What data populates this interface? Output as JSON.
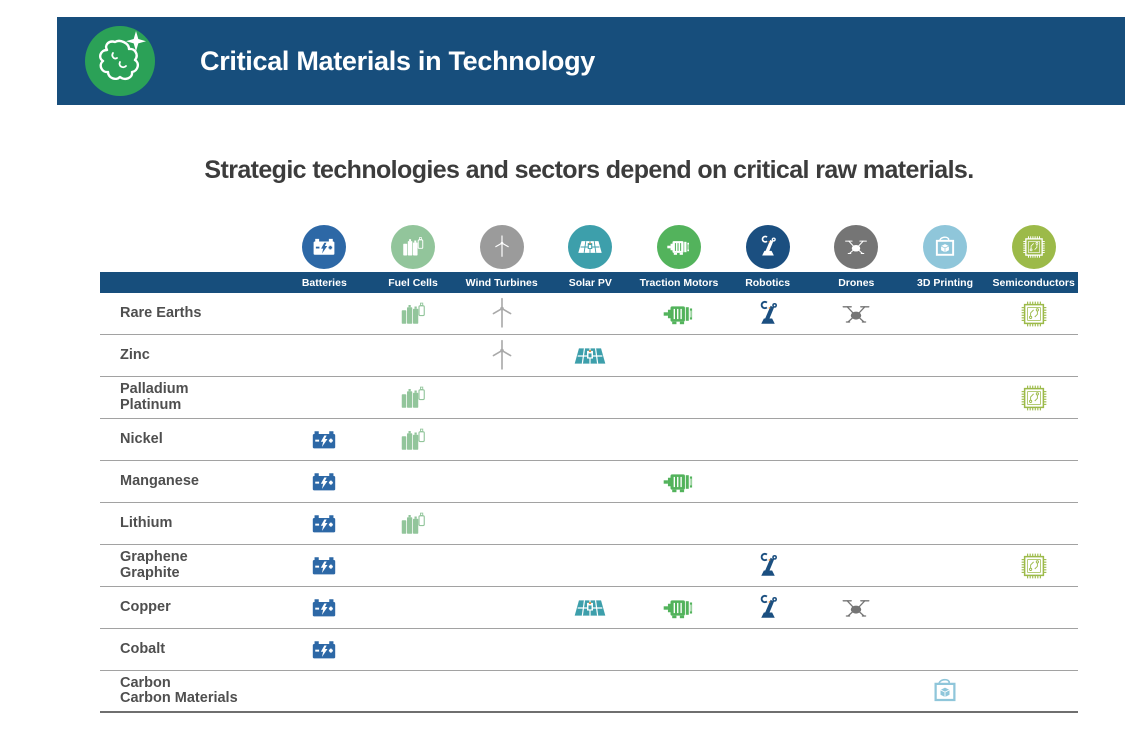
{
  "header": {
    "title": "Critical Materials in Technology",
    "logo_icon": "minerals-logo"
  },
  "subtitle": "Strategic technologies and sectors depend on critical raw materials.",
  "table": {
    "columns": [
      {
        "id": "batteries",
        "label": "Batteries",
        "color": "#2d68a6",
        "icon": "battery-icon"
      },
      {
        "id": "fuel-cells",
        "label": "Fuel Cells",
        "color": "#92c59b",
        "icon": "fuel-cell-icon"
      },
      {
        "id": "wind-turbines",
        "label": "Wind Turbines",
        "color": "#9b9b9b",
        "cell_color": "#a9a9a9",
        "icon": "wind-turbine-icon"
      },
      {
        "id": "solar-pv",
        "label": "Solar PV",
        "color": "#3d9fab",
        "icon": "solar-panel-icon"
      },
      {
        "id": "traction-motors",
        "label": "Traction Motors",
        "color": "#53b35c",
        "icon": "motor-icon"
      },
      {
        "id": "robotics",
        "label": "Robotics",
        "color": "#1b4f80",
        "icon": "robot-arm-icon"
      },
      {
        "id": "drones",
        "label": "Drones",
        "color": "#757575",
        "icon": "drone-icon"
      },
      {
        "id": "3d-printing",
        "label": "3D Printing",
        "color": "#8fc6da",
        "icon": "3d-printer-icon"
      },
      {
        "id": "semiconductors",
        "label": "Semiconductors",
        "color": "#9cba49",
        "icon": "chip-icon"
      }
    ],
    "rows": [
      {
        "id": "rare-earths",
        "label_lines": [
          "Rare Earths"
        ],
        "cells": [
          0,
          1,
          1,
          0,
          1,
          1,
          1,
          0,
          1
        ]
      },
      {
        "id": "zinc",
        "label_lines": [
          "Zinc"
        ],
        "cells": [
          0,
          0,
          1,
          1,
          0,
          0,
          0,
          0,
          0
        ]
      },
      {
        "id": "palladium",
        "label_lines": [
          "Palladium",
          "Platinum"
        ],
        "cells": [
          0,
          1,
          0,
          0,
          0,
          0,
          0,
          0,
          1
        ]
      },
      {
        "id": "nickel",
        "label_lines": [
          "Nickel"
        ],
        "cells": [
          1,
          1,
          0,
          0,
          0,
          0,
          0,
          0,
          0
        ]
      },
      {
        "id": "manganese",
        "label_lines": [
          "Manganese"
        ],
        "cells": [
          1,
          0,
          0,
          0,
          1,
          0,
          0,
          0,
          0
        ]
      },
      {
        "id": "lithium",
        "label_lines": [
          "Lithium"
        ],
        "cells": [
          1,
          1,
          0,
          0,
          0,
          0,
          0,
          0,
          0
        ]
      },
      {
        "id": "graphene",
        "label_lines": [
          "Graphene",
          "Graphite"
        ],
        "cells": [
          1,
          0,
          0,
          0,
          0,
          1,
          0,
          0,
          1
        ]
      },
      {
        "id": "copper",
        "label_lines": [
          "Copper"
        ],
        "cells": [
          1,
          0,
          0,
          1,
          1,
          1,
          1,
          0,
          0
        ]
      },
      {
        "id": "cobalt",
        "label_lines": [
          "Cobalt"
        ],
        "cells": [
          1,
          0,
          0,
          0,
          0,
          0,
          0,
          0,
          0
        ]
      },
      {
        "id": "carbon",
        "label_lines": [
          "Carbon",
          "Carbon Materials"
        ],
        "cells": [
          0,
          0,
          0,
          0,
          0,
          0,
          0,
          1,
          0
        ]
      }
    ]
  },
  "colors": {
    "header_bar": "#174e7c",
    "logo_green": "#2ba157",
    "band": "#174e7c",
    "row_label": "#4f4f4f",
    "separator": "#a2a2a2",
    "bottom_rule": "#6f6f6f",
    "accent_orange": "#e0883a"
  },
  "chart_data": {
    "type": "table",
    "title": "Critical Materials in Technology",
    "subtitle": "Strategic technologies and sectors depend on critical raw materials.",
    "columns": [
      "Batteries",
      "Fuel Cells",
      "Wind Turbines",
      "Solar PV",
      "Traction Motors",
      "Robotics",
      "Drones",
      "3D Printing",
      "Semiconductors"
    ],
    "rows": [
      "Rare Earths",
      "Zinc",
      "Palladium Platinum",
      "Nickel",
      "Manganese",
      "Lithium",
      "Graphene Graphite",
      "Copper",
      "Cobalt",
      "Carbon Carbon Materials"
    ],
    "matrix": [
      [
        0,
        1,
        1,
        0,
        1,
        1,
        1,
        0,
        1
      ],
      [
        0,
        0,
        1,
        1,
        0,
        0,
        0,
        0,
        0
      ],
      [
        0,
        1,
        0,
        0,
        0,
        0,
        0,
        0,
        1
      ],
      [
        1,
        1,
        0,
        0,
        0,
        0,
        0,
        0,
        0
      ],
      [
        1,
        0,
        0,
        0,
        1,
        0,
        0,
        0,
        0
      ],
      [
        1,
        1,
        0,
        0,
        0,
        0,
        0,
        0,
        0
      ],
      [
        1,
        0,
        0,
        0,
        0,
        1,
        0,
        0,
        1
      ],
      [
        1,
        0,
        0,
        1,
        1,
        1,
        1,
        0,
        0
      ],
      [
        1,
        0,
        0,
        0,
        0,
        0,
        0,
        0,
        0
      ],
      [
        0,
        0,
        0,
        0,
        0,
        0,
        0,
        1,
        0
      ]
    ],
    "legend_position": "none",
    "grid": "row-separators"
  }
}
